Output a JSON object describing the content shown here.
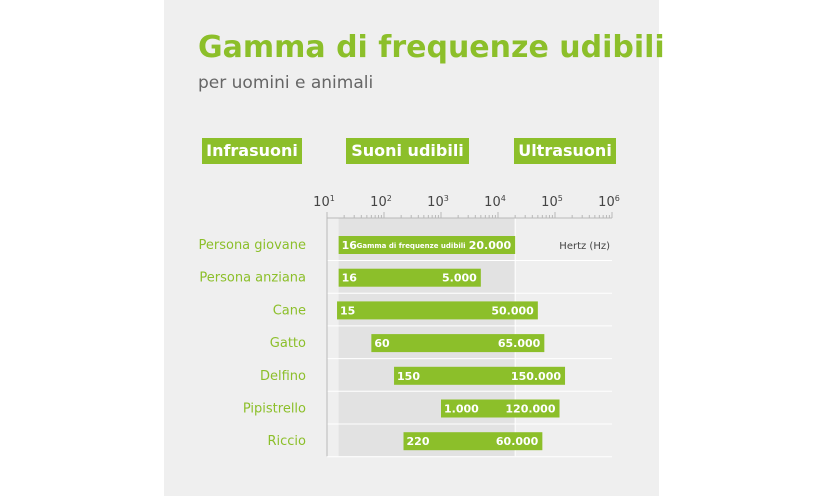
{
  "header": {
    "title": "Gamma di frequenze udibili",
    "subtitle": "per uomini e animali"
  },
  "zones": {
    "infrasound": "Infrasuoni",
    "audible": "Suoni udibili",
    "ultrasound": "Ultrasuoni"
  },
  "colors": {
    "accent": "#8cbf2a",
    "panel": "#efefef",
    "audible_band": "#e2e2e2"
  },
  "chart_data": {
    "type": "bar",
    "orientation": "horizontal",
    "x_scale": "log",
    "xlim": [
      10,
      1000000
    ],
    "audible_band": [
      16,
      20000
    ],
    "x_ticks": [
      {
        "value": 10,
        "base": "10",
        "exp": "1"
      },
      {
        "value": 100,
        "base": "10",
        "exp": "2"
      },
      {
        "value": 1000,
        "base": "10",
        "exp": "3"
      },
      {
        "value": 10000,
        "base": "10",
        "exp": "4"
      },
      {
        "value": 100000,
        "base": "10",
        "exp": "5"
      },
      {
        "value": 1000000,
        "base": "10",
        "exp": "6"
      }
    ],
    "unit_label": "Hertz (Hz)",
    "categories": [
      "Persona giovane",
      "Persona anziana",
      "Cane",
      "Gatto",
      "Delfino",
      "Pipistrello",
      "Riccio"
    ],
    "ranges": [
      {
        "min": 16,
        "max": 20000,
        "min_label": "16",
        "max_label": "20.000",
        "note": "Gamma di frequenze udibili"
      },
      {
        "min": 16,
        "max": 5000,
        "min_label": "16",
        "max_label": "5.000"
      },
      {
        "min": 15,
        "max": 50000,
        "min_label": "15",
        "max_label": "50.000"
      },
      {
        "min": 60,
        "max": 65000,
        "min_label": "60",
        "max_label": "65.000"
      },
      {
        "min": 150,
        "max": 150000,
        "min_label": "150",
        "max_label": "150.000"
      },
      {
        "min": 1000,
        "max": 120000,
        "min_label": "1.000",
        "max_label": "120.000"
      },
      {
        "min": 220,
        "max": 60000,
        "min_label": "220",
        "max_label": "60.000"
      }
    ]
  }
}
